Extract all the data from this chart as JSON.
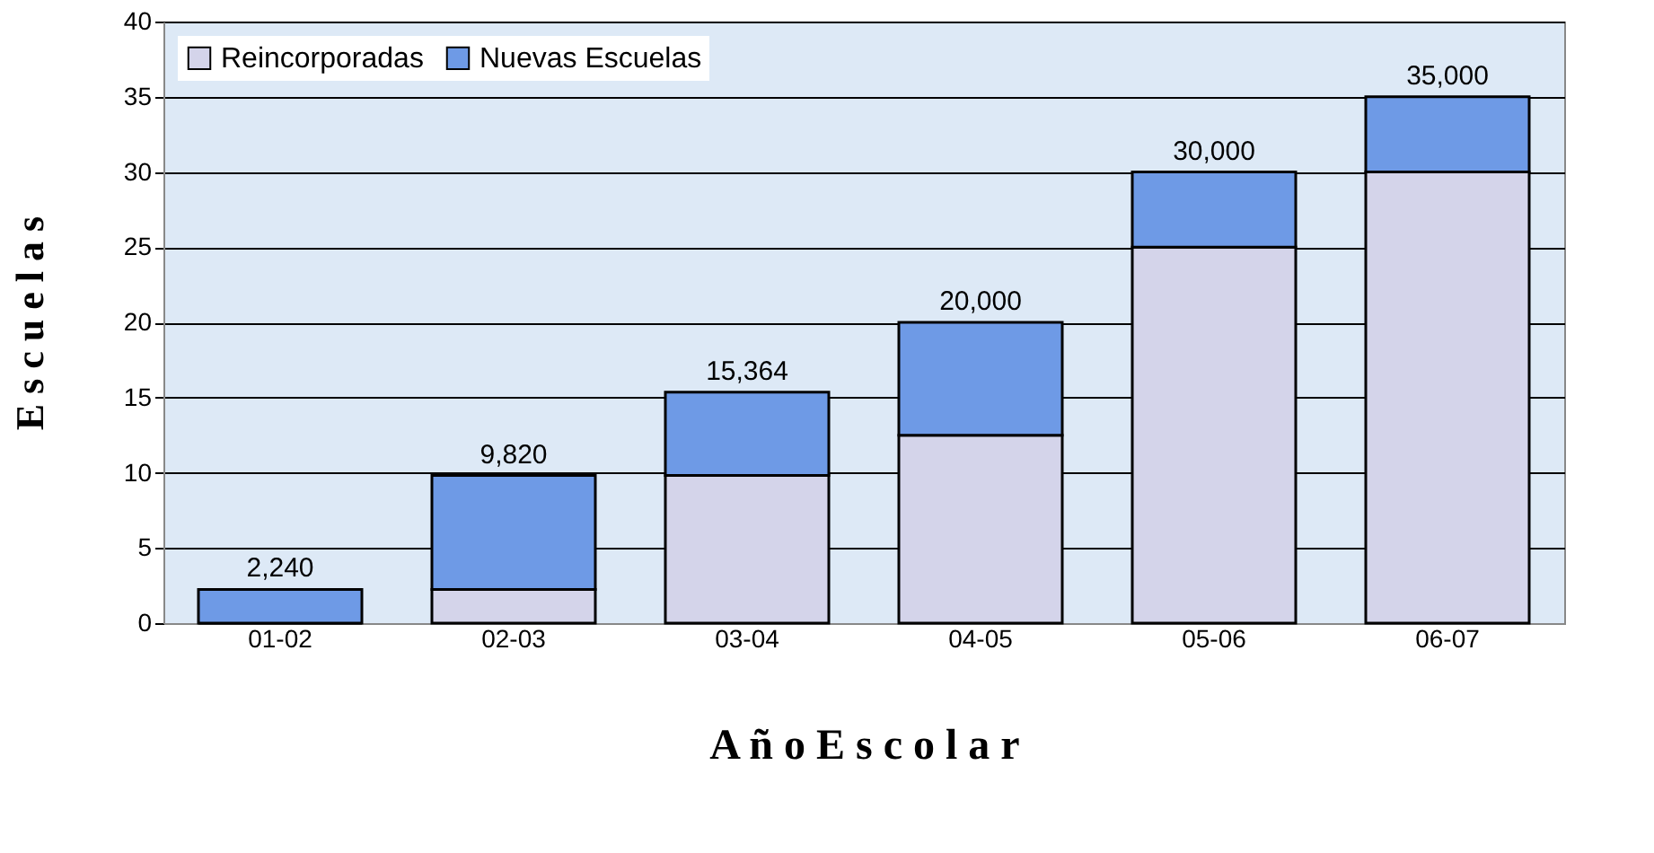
{
  "chart_data": {
    "type": "bar",
    "stacked": true,
    "xlabel": "A ñ o   E s c o l a r",
    "ylabel": "E s c u e l a s",
    "categories": [
      "01-02",
      "02-03",
      "03-04",
      "04-05",
      "05-06",
      "06-07"
    ],
    "series": [
      {
        "name": "Reincorporadas",
        "color": "#d4d4ea",
        "values": [
          0,
          2.24,
          9.82,
          12.5,
          25,
          30
        ]
      },
      {
        "name": "Nuevas Escuelas",
        "color": "#6e9ae6",
        "values": [
          2.24,
          7.58,
          5.544,
          7.5,
          5,
          5
        ]
      }
    ],
    "totals": [
      "2,240",
      "9,820",
      "15,364",
      "20,000",
      "30,000",
      "35,000"
    ],
    "ylim": [
      0,
      40
    ],
    "yticks": [
      0,
      5,
      10,
      15,
      20,
      25,
      30,
      35,
      40
    ],
    "grid": "y",
    "legend": "top left"
  }
}
